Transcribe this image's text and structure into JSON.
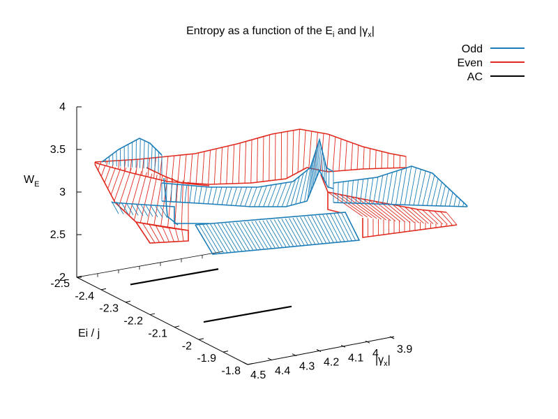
{
  "chart_data": {
    "type": "surface3d",
    "title": "Entropy as a function of the E",
    "title_sub": "i",
    "title_mid": " and |γ",
    "title_sub2": "x",
    "title_end": "|",
    "xlabel": "Ei / j",
    "ylabel_pre": "|γ",
    "ylabel_sub": "x",
    "ylabel_post": "|",
    "zlabel_main": "W",
    "zlabel_sub": "E",
    "x_ticks": [
      "-2.5",
      "-2.4",
      "-2.3",
      "-2.2",
      "-2.1",
      "-2",
      "-1.9",
      "-1.8"
    ],
    "y_ticks": [
      "4.5",
      "4.4",
      "4.3",
      "4.2",
      "4.1",
      "4",
      "3.9"
    ],
    "z_ticks": [
      "2",
      "2.5",
      "3",
      "3.5",
      "4"
    ],
    "xlim": [
      -2.5,
      -1.8
    ],
    "ylim": [
      3.9,
      4.5
    ],
    "zlim": [
      2,
      4
    ],
    "grid": false,
    "legend_position": "top-right",
    "series": [
      {
        "name": "Odd",
        "color": "#1a7db8"
      },
      {
        "name": "Even",
        "color": "#e0281c"
      },
      {
        "name": "AC",
        "color": "#000000"
      }
    ],
    "ac_lines_x": [
      -2.4,
      -2.1
    ]
  }
}
